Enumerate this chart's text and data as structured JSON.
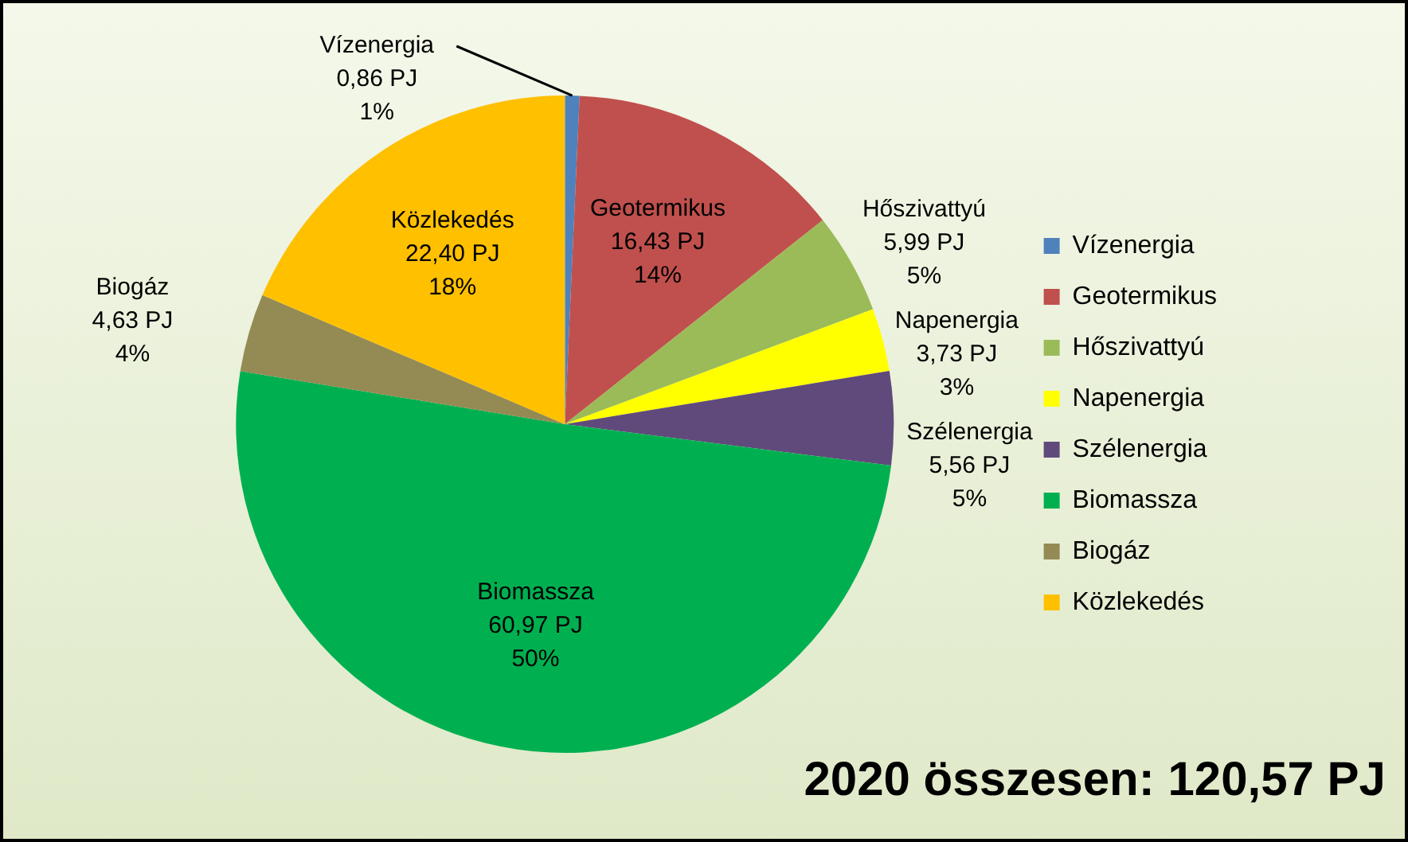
{
  "chart_data": {
    "type": "pie",
    "categories": [
      "Vízenergia",
      "Geotermikus",
      "Hőszivattyú",
      "Napenergia",
      "Szélenergia",
      "Biomassza",
      "Biogáz",
      "Közlekedés"
    ],
    "values": [
      0.86,
      16.43,
      5.99,
      3.73,
      5.56,
      60.97,
      4.63,
      22.4
    ],
    "value_labels": [
      "0,86 PJ\n1%",
      "16,43 PJ\n14%",
      "5,99 PJ\n5%",
      "3,73 PJ\n3%",
      "5,56 PJ\n5%",
      "60,97 PJ\n50%",
      "4,63 PJ\n4%",
      "22,40 PJ\n18%"
    ],
    "colors": [
      "#4f81bd",
      "#c0504d",
      "#9bbb59",
      "#ffff00",
      "#604a7b",
      "#00b050",
      "#948a54",
      "#ffc000"
    ],
    "legend": "right",
    "annotations": [
      "2020 összesen: 120,57 PJ"
    ]
  }
}
